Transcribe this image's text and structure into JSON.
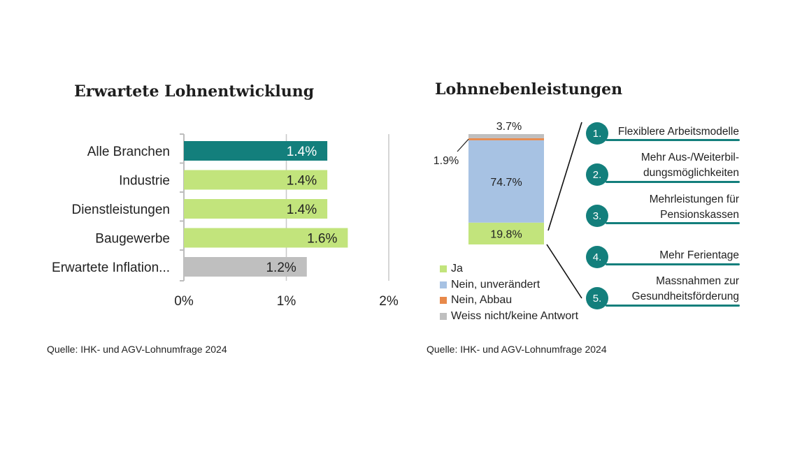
{
  "left": {
    "title": "Erwartete Lohnentwicklung",
    "source": "Quelle: IHK- und AGV-Lohnumfrage 2024"
  },
  "right": {
    "title": "Lohnnebenleistungen",
    "source": "Quelle: IHK- und AGV-Lohnumfrage 2024",
    "items": [
      {
        "number": "1.",
        "text": "Flexiblere Arbeitsmodelle"
      },
      {
        "number": "2.",
        "text": "Mehr Aus-/Weiterbil-\ndungsmöglichkeiten"
      },
      {
        "number": "3.",
        "text": "Mehrleistungen für\nPensionskassen"
      },
      {
        "number": "4.",
        "text": "Mehr Ferientage"
      },
      {
        "number": "5.",
        "text": "Massnahmen zur\nGesundheitsförderung"
      }
    ]
  },
  "chart_data": [
    {
      "type": "bar",
      "orientation": "horizontal",
      "title": "Erwartete Lohnentwicklung",
      "categories": [
        "Alle Branchen",
        "Industrie",
        "Dienstleistungen",
        "Baugewerbe",
        "Erwartete Inflation..."
      ],
      "values": [
        1.4,
        1.4,
        1.4,
        1.6,
        1.2
      ],
      "data_labels": [
        "1.4%",
        "1.4%",
        "1.4%",
        "1.6%",
        "1.2%"
      ],
      "colors": [
        "#137f7c",
        "#c2e47c",
        "#c2e47c",
        "#c2e47c",
        "#bfbfbf"
      ],
      "xticks": [
        0,
        1,
        2
      ],
      "xtick_labels": [
        "0%",
        "1%",
        "2%"
      ],
      "xlim": [
        0,
        2
      ],
      "grid": true
    },
    {
      "type": "bar",
      "stacked": true,
      "title": "Lohnnebenleistungen",
      "series": [
        {
          "name": "Ja",
          "value": 19.8,
          "label": "19.8%",
          "color": "#c2e47c"
        },
        {
          "name": "Nein, unverändert",
          "value": 74.7,
          "label": "74.7%",
          "color": "#a7c2e3"
        },
        {
          "name": "Nein, Abbau",
          "value": 1.9,
          "label": "1.9%",
          "color": "#e8894a"
        },
        {
          "name": "Weiss nicht/keine Antwort",
          "value": 3.7,
          "label": "3.7%",
          "color": "#bfbfbf"
        }
      ],
      "legend": "bottom-left"
    }
  ]
}
